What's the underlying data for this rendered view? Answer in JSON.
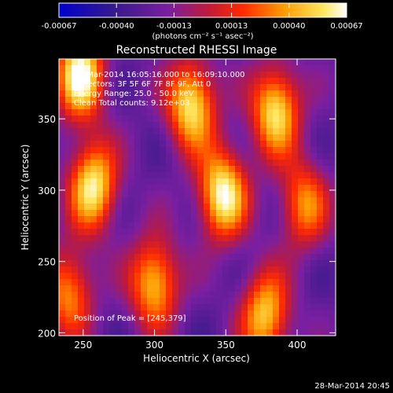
{
  "footer_timestamp": "28-Mar-2014 20:45",
  "colorbar": {
    "ticks": [
      "-0.00067",
      "-0.00040",
      "-0.00013",
      "0.00013",
      "0.00040",
      "0.00067"
    ],
    "unit_label": "(photons cm⁻² s⁻¹ asec⁻²)",
    "range": [
      -0.00067,
      0.00067
    ],
    "colors": [
      "#0000cc",
      "#3a1a8c",
      "#7a1fa0",
      "#c01a3a",
      "#ff2a00",
      "#ff9a00",
      "#ffe860",
      "#ffffff"
    ]
  },
  "chart_data": {
    "type": "heatmap",
    "title": "Reconstructed RHESSI Image",
    "xlabel": "Heliocentric X (arcsec)",
    "ylabel": "Heliocentric Y (arcsec)",
    "xlim": [
      233,
      427
    ],
    "ylim": [
      198,
      392
    ],
    "xticks": [
      "250",
      "300",
      "350",
      "400"
    ],
    "yticks": [
      "200",
      "250",
      "300",
      "350"
    ],
    "annotations": [
      "01-Mar-2014 16:05:16.000 to 16:09:10.000",
      "Detectors: 3F 5F 6F 7F 8F 9F, Att 0",
      "Energy Range: 25.0 - 50.0 keV",
      "Clean     Total counts: 9.12e+03"
    ],
    "peak_label": "Position of Peak = [245,379]",
    "background_level": -0.00025,
    "sources": [
      {
        "x": 248,
        "y": 381,
        "peak": 0.00067
      },
      {
        "x": 326,
        "y": 360,
        "peak": 0.0006
      },
      {
        "x": 385,
        "y": 356,
        "peak": 0.00058
      },
      {
        "x": 257,
        "y": 303,
        "peak": 0.0006
      },
      {
        "x": 348,
        "y": 297,
        "peak": 0.00066
      },
      {
        "x": 405,
        "y": 290,
        "peak": 0.00034
      },
      {
        "x": 300,
        "y": 235,
        "peak": 0.0005
      },
      {
        "x": 240,
        "y": 228,
        "peak": 0.00036
      },
      {
        "x": 378,
        "y": 212,
        "peak": 0.0005
      }
    ]
  }
}
